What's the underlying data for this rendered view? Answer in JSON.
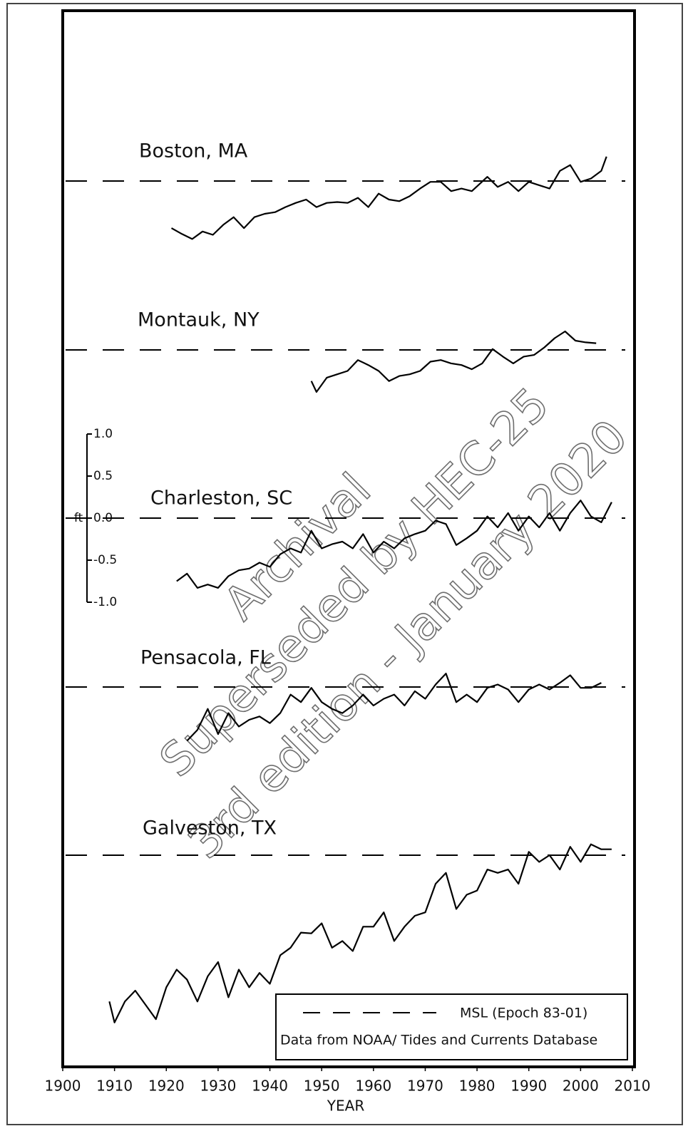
{
  "chart_data": {
    "type": "line",
    "xlim": [
      1900,
      2010
    ],
    "xticks": [
      1900,
      1910,
      1920,
      1930,
      1940,
      1950,
      1960,
      1970,
      1980,
      1990,
      2000,
      2010
    ],
    "xlabel": "YEAR",
    "ylabel": "ft",
    "yticks": [
      {
        "value": 1.0,
        "label": "1.0"
      },
      0.5,
      {
        "value": 0.0,
        "label": "0.0"
      },
      -0.5,
      {
        "value": -1.0,
        "label": "-1.0"
      }
    ],
    "legend": {
      "line": "MSL (Epoch 83-01)",
      "source": "Data from NOAA/ Tides and Currents  Database"
    },
    "annotations": [
      "Archival",
      "Superseded by HEC-25",
      "3rd edition - January 2020"
    ],
    "series": [
      {
        "name": "Boston, MA",
        "color": "#000000",
        "x": [
          1921,
          1923,
          1925,
          1927,
          1929,
          1931,
          1933,
          1935,
          1937,
          1939,
          1941,
          1943,
          1945,
          1947,
          1949,
          1951,
          1953,
          1955,
          1957,
          1959,
          1961,
          1963,
          1965,
          1967,
          1969,
          1971,
          1973,
          1975,
          1977,
          1979,
          1982,
          1984,
          1986,
          1988,
          1990,
          1992,
          1994,
          1996,
          1998,
          2000,
          2002,
          2004,
          2005
        ],
        "values": [
          -0.56,
          -0.63,
          -0.69,
          -0.6,
          -0.64,
          -0.52,
          -0.43,
          -0.56,
          -0.43,
          -0.39,
          -0.37,
          -0.31,
          -0.26,
          -0.22,
          -0.31,
          -0.26,
          -0.25,
          -0.26,
          -0.2,
          -0.31,
          -0.15,
          -0.22,
          -0.24,
          -0.18,
          -0.09,
          -0.01,
          -0.01,
          -0.12,
          -0.09,
          -0.12,
          0.05,
          -0.07,
          -0.01,
          -0.12,
          -0.01,
          -0.05,
          -0.09,
          0.12,
          0.19,
          -0.01,
          0.03,
          0.12,
          0.29
        ]
      },
      {
        "name": "Montauk, NY",
        "color": "#000000",
        "x": [
          1948,
          1949,
          1951,
          1953,
          1955,
          1957,
          1959,
          1961,
          1963,
          1965,
          1967,
          1969,
          1971,
          1973,
          1975,
          1977,
          1979,
          1981,
          1983,
          1985,
          1987,
          1989,
          1991,
          1993,
          1995,
          1997,
          1999,
          2001,
          2003
        ],
        "values": [
          -0.37,
          -0.5,
          -0.33,
          -0.29,
          -0.25,
          -0.12,
          -0.18,
          -0.25,
          -0.37,
          -0.31,
          -0.29,
          -0.25,
          -0.14,
          -0.12,
          -0.16,
          -0.18,
          -0.23,
          -0.16,
          0.01,
          -0.08,
          -0.16,
          -0.08,
          -0.06,
          0.03,
          0.14,
          0.22,
          0.11,
          0.09,
          0.08
        ]
      },
      {
        "name": "Charleston, SC",
        "color": "#000000",
        "x": [
          1922,
          1924,
          1926,
          1928,
          1930,
          1932,
          1934,
          1936,
          1938,
          1940,
          1942,
          1944,
          1946,
          1948,
          1950,
          1952,
          1954,
          1956,
          1958,
          1960,
          1962,
          1964,
          1966,
          1968,
          1970,
          1972,
          1974,
          1976,
          1978,
          1980,
          1982,
          1984,
          1986,
          1988,
          1990,
          1992,
          1994,
          1996,
          1998,
          2000,
          2002,
          2004,
          2006
        ],
        "values": [
          -0.75,
          -0.66,
          -0.83,
          -0.79,
          -0.83,
          -0.69,
          -0.62,
          -0.6,
          -0.53,
          -0.58,
          -0.43,
          -0.36,
          -0.41,
          -0.15,
          -0.36,
          -0.31,
          -0.28,
          -0.36,
          -0.19,
          -0.41,
          -0.28,
          -0.36,
          -0.24,
          -0.19,
          -0.15,
          -0.03,
          -0.07,
          -0.32,
          -0.24,
          -0.15,
          0.02,
          -0.11,
          0.06,
          -0.15,
          0.02,
          -0.11,
          0.06,
          -0.15,
          0.06,
          0.21,
          0.02,
          -0.05,
          0.19
        ]
      },
      {
        "name": "Pensacola, FL",
        "color": "#000000",
        "x": [
          1924,
          1926,
          1928,
          1930,
          1932,
          1934,
          1936,
          1938,
          1940,
          1942,
          1944,
          1946,
          1948,
          1950,
          1952,
          1954,
          1956,
          1958,
          1960,
          1962,
          1964,
          1966,
          1968,
          1970,
          1972,
          1974,
          1976,
          1978,
          1980,
          1982,
          1984,
          1986,
          1988,
          1990,
          1992,
          1994,
          1996,
          1998,
          2000,
          2002,
          2004
        ],
        "values": [
          -0.64,
          -0.51,
          -0.26,
          -0.56,
          -0.31,
          -0.47,
          -0.39,
          -0.35,
          -0.43,
          -0.31,
          -0.09,
          -0.18,
          -0.01,
          -0.18,
          -0.26,
          -0.31,
          -0.22,
          -0.09,
          -0.22,
          -0.14,
          -0.09,
          -0.22,
          -0.05,
          -0.14,
          0.03,
          0.16,
          -0.18,
          -0.09,
          -0.18,
          -0.01,
          0.03,
          -0.03,
          -0.18,
          -0.03,
          0.03,
          -0.03,
          0.05,
          0.14,
          -0.01,
          -0.01,
          0.05
        ]
      },
      {
        "name": "Galveston, TX",
        "color": "#000000",
        "x": [
          1909,
          1910,
          1912,
          1914,
          1916,
          1918,
          1920,
          1922,
          1924,
          1926,
          1928,
          1930,
          1932,
          1934,
          1936,
          1938,
          1940,
          1942,
          1944,
          1946,
          1948,
          1950,
          1952,
          1954,
          1956,
          1958,
          1960,
          1962,
          1964,
          1966,
          1968,
          1970,
          1972,
          1974,
          1976,
          1978,
          1980,
          1982,
          1984,
          1986,
          1988,
          1990,
          1992,
          1994,
          1996,
          1998,
          2000,
          2002,
          2004,
          2006
        ],
        "values": [
          -1.74,
          -1.99,
          -1.74,
          -1.61,
          -1.78,
          -1.95,
          -1.57,
          -1.36,
          -1.48,
          -1.74,
          -1.44,
          -1.27,
          -1.69,
          -1.36,
          -1.57,
          -1.4,
          -1.53,
          -1.19,
          -1.1,
          -0.92,
          -0.93,
          -0.81,
          -1.1,
          -1.02,
          -1.14,
          -0.85,
          -0.85,
          -0.68,
          -1.02,
          -0.85,
          -0.72,
          -0.68,
          -0.34,
          -0.21,
          -0.64,
          -0.47,
          -0.42,
          -0.17,
          -0.21,
          -0.17,
          -0.34,
          0.04,
          -0.08,
          0.0,
          -0.17,
          0.1,
          -0.08,
          0.13,
          0.07,
          0.07
        ]
      }
    ]
  }
}
